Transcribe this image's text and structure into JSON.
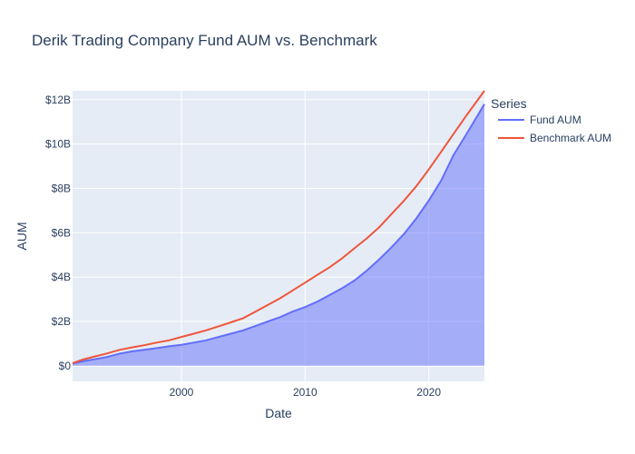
{
  "chart_data": {
    "type": "area",
    "title": "Derik Trading Company Fund AUM vs. Benchmark",
    "xlabel": "Date",
    "ylabel": "AUM",
    "x_range": [
      1991.2,
      2024.5
    ],
    "ylim": [
      -0.7,
      12.4
    ],
    "x_tick_values": [
      2000,
      2010,
      2020
    ],
    "x_tick_labels": [
      "2000",
      "2010",
      "2020"
    ],
    "y_tick_values": [
      0,
      2,
      4,
      6,
      8,
      10,
      12
    ],
    "y_tick_labels": [
      "$0",
      "$2B",
      "$4B",
      "$6B",
      "$8B",
      "$10B",
      "$12B"
    ],
    "grid": true,
    "legend": {
      "title": "Series",
      "position": "right"
    },
    "series": [
      {
        "name": "Fund AUM",
        "color": "#636efa",
        "fill": "tozeroy",
        "x": [
          1991.2,
          1992,
          1993,
          1994,
          1995,
          1996,
          1997,
          1998,
          1999,
          2000,
          2001,
          2002,
          2003,
          2004,
          2005,
          2006,
          2007,
          2008,
          2009,
          2010,
          2011,
          2012,
          2013,
          2014,
          2015,
          2016,
          2017,
          2018,
          2019,
          2020,
          2021,
          2022,
          2023,
          2024.5
        ],
        "y": [
          0.1,
          0.2,
          0.3,
          0.4,
          0.55,
          0.65,
          0.72,
          0.8,
          0.88,
          0.95,
          1.05,
          1.15,
          1.3,
          1.45,
          1.6,
          1.8,
          2.0,
          2.2,
          2.45,
          2.65,
          2.9,
          3.2,
          3.5,
          3.85,
          4.3,
          4.8,
          5.35,
          5.95,
          6.65,
          7.45,
          8.35,
          9.5,
          10.4,
          11.8
        ]
      },
      {
        "name": "Benchmark AUM",
        "color": "#ef553b",
        "fill": "none",
        "x": [
          1991.2,
          1992,
          1993,
          1994,
          1995,
          1996,
          1997,
          1998,
          1999,
          2000,
          2001,
          2002,
          2003,
          2004,
          2005,
          2006,
          2007,
          2008,
          2009,
          2010,
          2011,
          2012,
          2013,
          2014,
          2015,
          2016,
          2017,
          2018,
          2019,
          2020,
          2021,
          2022,
          2023,
          2024.5
        ],
        "y": [
          0.12,
          0.28,
          0.42,
          0.56,
          0.72,
          0.83,
          0.93,
          1.05,
          1.15,
          1.3,
          1.45,
          1.6,
          1.78,
          1.96,
          2.15,
          2.45,
          2.75,
          3.05,
          3.4,
          3.75,
          4.1,
          4.45,
          4.85,
          5.3,
          5.75,
          6.25,
          6.85,
          7.45,
          8.1,
          8.85,
          9.65,
          10.45,
          11.25,
          12.4
        ]
      }
    ]
  }
}
